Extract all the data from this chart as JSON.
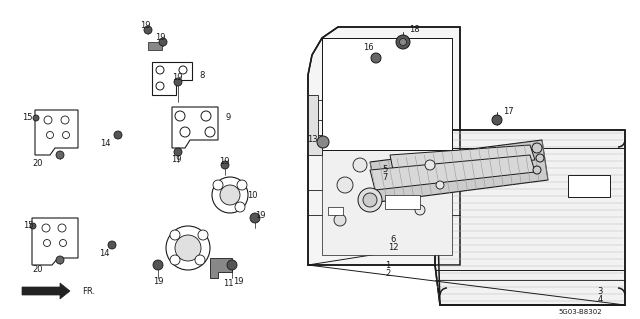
{
  "bg_color": "#ffffff",
  "line_color": "#1a1a1a",
  "diagram_code": "5G03-B8302",
  "fig_w": 6.4,
  "fig_h": 3.19,
  "dpi": 100
}
